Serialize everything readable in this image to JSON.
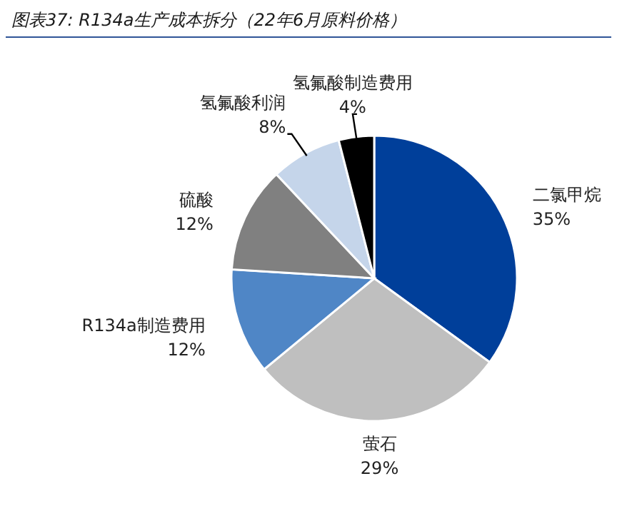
{
  "chart_data": {
    "type": "pie",
    "title": "图表37:  R134a生产成本拆分（22年6月原料价格）",
    "categories": [
      "二氯甲烷",
      "萤石",
      "R134a制造费用",
      "硫酸",
      "氢氟酸利润",
      "氢氟酸制造费用"
    ],
    "values": [
      35,
      29,
      12,
      12,
      8,
      4
    ],
    "colors": [
      "#003f9a",
      "#bfbfbf",
      "#4f86c6",
      "#808080",
      "#c5d5ea",
      "#000000"
    ],
    "value_labels": [
      "35%",
      "29%",
      "12%",
      "12%",
      "8%",
      "4%"
    ]
  }
}
